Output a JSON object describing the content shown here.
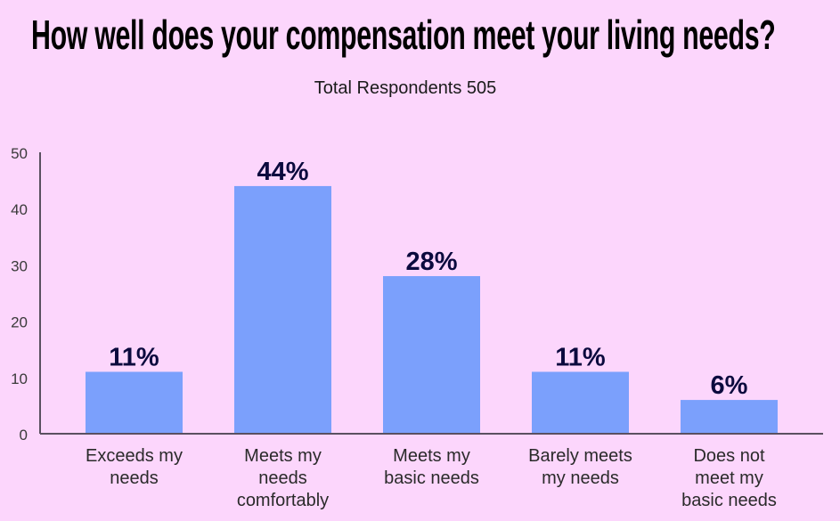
{
  "chart_data": {
    "type": "bar",
    "title": "How well does your compensation meet your living needs?",
    "subtitle": "Total Respondents 505",
    "categories": [
      [
        "Exceeds my",
        "needs"
      ],
      [
        "Meets my",
        "needs",
        "comfortably"
      ],
      [
        "Meets my",
        "basic needs"
      ],
      [
        "Barely meets",
        "my needs"
      ],
      [
        "Does not",
        "meet my",
        "basic needs"
      ]
    ],
    "values": [
      11,
      44,
      28,
      11,
      6
    ],
    "data_labels": [
      "11%",
      "44%",
      "28%",
      "11%",
      "6%"
    ],
    "ylim": [
      0,
      50
    ],
    "yticks": [
      0,
      10,
      20,
      30,
      40,
      50
    ],
    "xlabel": "",
    "ylabel": "",
    "grid": false,
    "colors": {
      "bar": "#7ba0fc",
      "label": "#0b0a3e",
      "axis": "#5a5060",
      "background": "#fcd6fc"
    }
  }
}
